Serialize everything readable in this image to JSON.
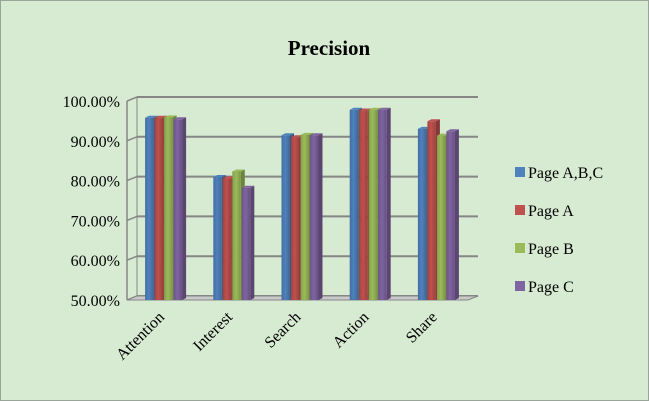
{
  "chart_data": {
    "type": "bar",
    "title": "Precision",
    "categories": [
      "Attention",
      "Interest",
      "Search",
      "Action",
      "Share"
    ],
    "series": [
      {
        "name": "Page A,B,C",
        "color": "#4f81bd",
        "values": [
          95.8,
          80.9,
          91.4,
          97.8,
          93.0
        ]
      },
      {
        "name": "Page A",
        "color": "#c0504d",
        "values": [
          95.8,
          80.6,
          90.9,
          97.6,
          94.9
        ]
      },
      {
        "name": "Page B",
        "color": "#9bbb59",
        "values": [
          95.9,
          82.3,
          91.5,
          97.8,
          91.3
        ]
      },
      {
        "name": "Page C",
        "color": "#8064a2",
        "values": [
          95.4,
          78.2,
          91.4,
          97.8,
          92.4
        ]
      }
    ],
    "yticks": [
      "50.00%",
      "60.00%",
      "70.00%",
      "80.00%",
      "90.00%",
      "100.00%"
    ],
    "ylim": [
      50,
      100
    ],
    "xlabel": "",
    "ylabel": "",
    "grid": true,
    "legend": "right"
  }
}
